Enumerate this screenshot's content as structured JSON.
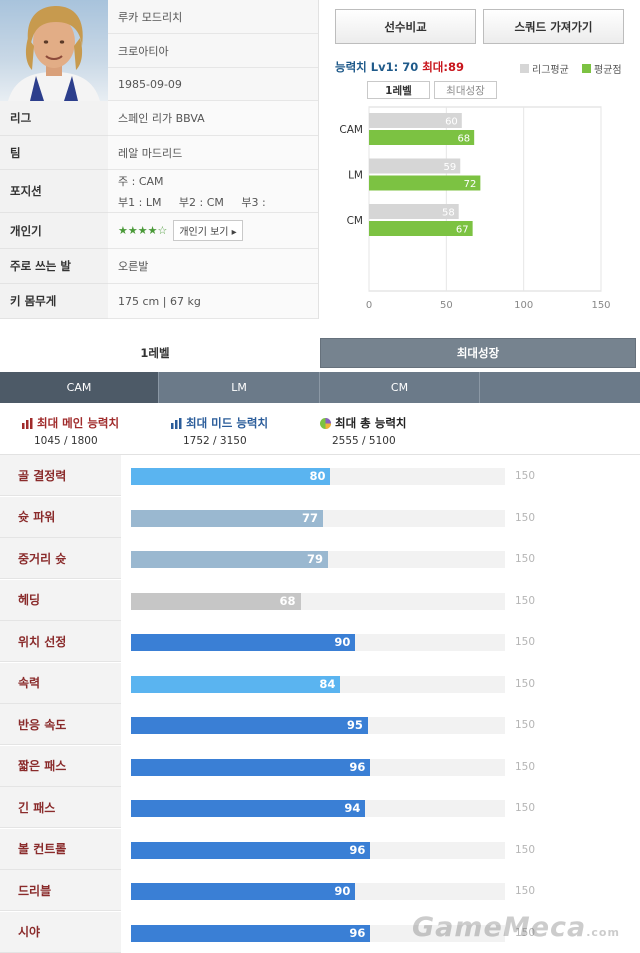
{
  "player": {
    "name": "루카 모드리치",
    "nation": "크로아티아",
    "birth": "1985-09-09",
    "rows": [
      {
        "label": "리그",
        "value": "스페인 리가 BBVA"
      },
      {
        "label": "팀",
        "value": "레알 마드리드"
      },
      {
        "label": "포지션",
        "value": ""
      },
      {
        "label": "개인기",
        "value": ""
      },
      {
        "label": "주로 쓰는 발",
        "value": "오른발"
      },
      {
        "label": "키 몸무게",
        "value": "175 cm | 67 kg"
      }
    ],
    "position_main": "주 : CAM",
    "position_sub": "부1 : LM     부2 : CM     부3 :",
    "skill_stars": "★★★★☆",
    "skill_button": "개인기 보기 ▸"
  },
  "actions": {
    "compare": "선수비교",
    "squad": "스쿼드 가져가기"
  },
  "ability": {
    "label": "능력치",
    "lv": "Lv1: 70",
    "max": "최대:89",
    "legend_league": "리그평균",
    "legend_avg": "평균점",
    "tab_level1": "1레벨",
    "tab_max": "최대성장",
    "colors": {
      "league": "#d6d6d6",
      "player": "#7cc242"
    }
  },
  "chart_data": {
    "type": "bar",
    "orientation": "horizontal",
    "categories": [
      "CAM",
      "LM",
      "CM"
    ],
    "series": [
      {
        "name": "리그평균",
        "values": [
          60,
          59,
          58
        ]
      },
      {
        "name": "평균점",
        "values": [
          68,
          72,
          67
        ]
      }
    ],
    "xticks": [
      0,
      50,
      100,
      150
    ],
    "xlim": [
      0,
      150
    ],
    "grid": true
  },
  "level_tabs": {
    "level1": "1레벨",
    "max": "최대성장"
  },
  "position_tabs": [
    "CAM",
    "LM",
    "CM",
    ""
  ],
  "summary": [
    {
      "title": "최대 메인 능력치",
      "value": "1045 / 1800",
      "color": "#a02b2b",
      "icon": "bar-chart-icon"
    },
    {
      "title": "최대 미드 능력치",
      "value": "1752 / 3150",
      "color": "#2a5c9a",
      "icon": "bar-chart-icon"
    },
    {
      "title": "최대 총 능력치",
      "value": "2555 / 5100",
      "color": "#222222",
      "icon": "pie-chart-icon"
    }
  ],
  "attributes": [
    {
      "name": "골 결정력",
      "value": "80",
      "max": "150",
      "color": "#5ab4f0"
    },
    {
      "name": "슛 파워",
      "value": "77",
      "max": "150",
      "color": "#9ab8d0"
    },
    {
      "name": "중거리 슛",
      "value": "79",
      "max": "150",
      "color": "#9ab8d0"
    },
    {
      "name": "헤딩",
      "value": "68",
      "max": "150",
      "color": "#c6c6c6"
    },
    {
      "name": "위치 선정",
      "value": "90",
      "max": "150",
      "color": "#3a7fd5"
    },
    {
      "name": "속력",
      "value": "84",
      "max": "150",
      "color": "#5ab4f0"
    },
    {
      "name": "반응 속도",
      "value": "95",
      "max": "150",
      "color": "#3a7fd5"
    },
    {
      "name": "짧은 패스",
      "value": "96",
      "max": "150",
      "color": "#3a7fd5"
    },
    {
      "name": "긴 패스",
      "value": "94",
      "max": "150",
      "color": "#3a7fd5"
    },
    {
      "name": "볼 컨트롤",
      "value": "96",
      "max": "150",
      "color": "#3a7fd5"
    },
    {
      "name": "드리블",
      "value": "90",
      "max": "150",
      "color": "#3a7fd5"
    },
    {
      "name": "시야",
      "value": "96",
      "max": "150",
      "color": "#3a7fd5"
    }
  ],
  "watermark": {
    "text": "GameMeca",
    "suffix": ".com"
  }
}
